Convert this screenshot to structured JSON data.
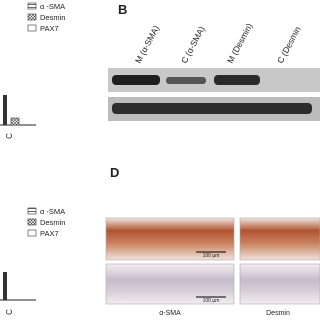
{
  "panel_a": {
    "legend": [
      "α -SMA",
      "Desmin",
      "PAX7"
    ],
    "x_label": "C"
  },
  "panel_b": {
    "label": "B",
    "lanes": [
      "M (α-SMA)",
      "C (α-SMA)",
      "M (Desmin)",
      "C (Desmin"
    ]
  },
  "panel_c": {
    "legend": [
      "α -SMA",
      "Desmin",
      "PAX7"
    ],
    "x_label": "C"
  },
  "panel_d": {
    "label": "D",
    "scale_bars": [
      "100 µm",
      "100 µm"
    ],
    "columns": [
      "α-SMA",
      "Desmin"
    ]
  }
}
